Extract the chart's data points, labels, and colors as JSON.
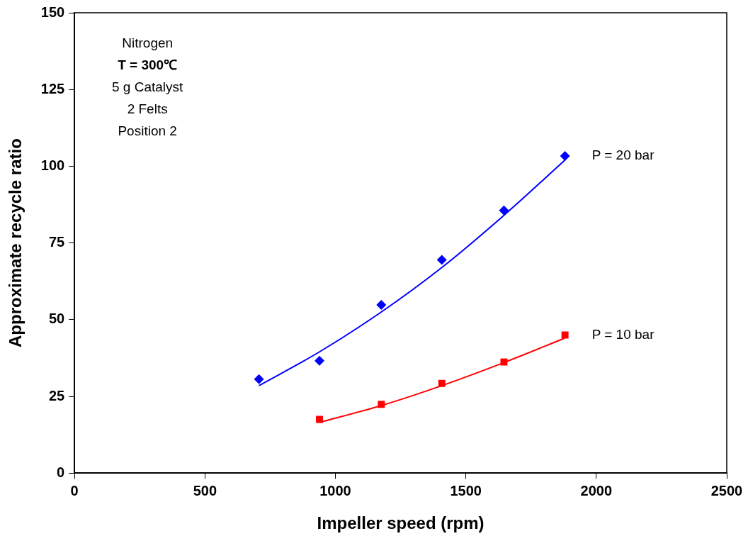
{
  "chart_data": {
    "type": "scatter",
    "xlabel": "Impeller speed (rpm)",
    "ylabel": "Approximate recycle ratio",
    "annotations": [
      "Nitrogen",
      "T = 300℃",
      "5 g Catalyst",
      "2 Felts",
      "Position 2"
    ],
    "xlim": [
      0,
      2500
    ],
    "xticks": [
      0,
      500,
      1000,
      1500,
      2000,
      2500
    ],
    "ylim": [
      0,
      150
    ],
    "yticks": [
      0,
      25,
      50,
      75,
      100,
      125,
      150
    ],
    "grid": false,
    "legend": false,
    "series": [
      {
        "name": "P = 20 bar",
        "color": "#0000ff",
        "marker": "diamond",
        "x": [
          707,
          939,
          1176,
          1408,
          1646,
          1880
        ],
        "values": [
          30.6,
          36.6,
          54.8,
          69.5,
          85.6,
          103.3
        ]
      },
      {
        "name": "P = 10 bar",
        "color": "#ff0000",
        "marker": "square",
        "x": [
          939,
          1176,
          1408,
          1646,
          1880
        ],
        "values": [
          17.5,
          22.4,
          29.2,
          36.2,
          45.0
        ]
      },
      {
        "type": "line",
        "color": "#0000ff",
        "marker": "none",
        "x": [
          707,
          939,
          1176,
          1408,
          1646,
          1880
        ],
        "values": [
          28.5,
          39.5,
          52.5,
          67,
          84,
          102
        ]
      },
      {
        "type": "line",
        "color": "#ff0000",
        "marker": "none",
        "x": [
          939,
          1176,
          1408,
          1646,
          1880
        ],
        "values": [
          16.5,
          22,
          28.5,
          36,
          44
        ]
      }
    ]
  }
}
